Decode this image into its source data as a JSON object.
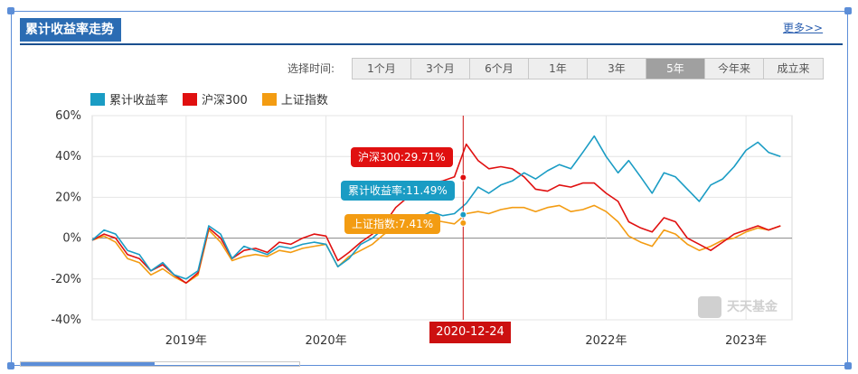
{
  "panel": {
    "title": "累计收益率走势",
    "more_link": "更多>>"
  },
  "time_selector": {
    "label": "选择时间:",
    "options": [
      "1个月",
      "3个月",
      "6个月",
      "1年",
      "3年",
      "5年",
      "今年来",
      "成立来"
    ],
    "selected": "5年"
  },
  "tooltip": {
    "hs300": "沪深300:29.71%",
    "cum": "累计收益率:11.49%",
    "sz": "上证指数:7.41%",
    "date": "2020-12-24"
  },
  "watermark": "天天基金",
  "colors": {
    "cum": "#1a9cc4",
    "hs300": "#e01010",
    "sz": "#f39c12"
  },
  "chart_data": {
    "type": "line",
    "title": "",
    "xlabel": "",
    "ylabel": "",
    "ylim": [
      -40,
      60
    ],
    "y_ticks": [
      "60%",
      "40%",
      "20%",
      "0%",
      "-20%",
      "-40%"
    ],
    "x_ticks": [
      "2019年",
      "2020年",
      "2022年",
      "2023年"
    ],
    "legend": [
      "累计收益率",
      "沪深300",
      "上证指数"
    ],
    "legend_position": "top-left",
    "grid": true,
    "x": [
      "2018-05",
      "2018-06",
      "2018-07",
      "2018-08",
      "2018-09",
      "2018-10",
      "2018-11",
      "2018-12",
      "2019-01",
      "2019-02",
      "2019-03",
      "2019-04",
      "2019-05",
      "2019-06",
      "2019-07",
      "2019-08",
      "2019-09",
      "2019-10",
      "2019-11",
      "2019-12",
      "2020-01",
      "2020-02",
      "2020-03",
      "2020-04",
      "2020-05",
      "2020-06",
      "2020-07",
      "2020-08",
      "2020-09",
      "2020-10",
      "2020-11",
      "2020-12",
      "2021-01",
      "2021-02",
      "2021-03",
      "2021-04",
      "2021-05",
      "2021-06",
      "2021-07",
      "2021-08",
      "2021-09",
      "2021-10",
      "2021-11",
      "2021-12",
      "2022-01",
      "2022-02",
      "2022-03",
      "2022-04",
      "2022-05",
      "2022-06",
      "2022-07",
      "2022-08",
      "2022-09",
      "2022-10",
      "2022-11",
      "2022-12",
      "2023-01",
      "2023-02",
      "2023-03",
      "2023-04"
    ],
    "series": [
      {
        "name": "累计收益率",
        "values": [
          -1,
          4,
          2,
          -6,
          -8,
          -16,
          -12,
          -18,
          -20,
          -16,
          6,
          2,
          -10,
          -4,
          -6,
          -8,
          -4,
          -5,
          -3,
          -2,
          -3,
          -14,
          -10,
          -3,
          0,
          5,
          10,
          8,
          10,
          13,
          11,
          12,
          17,
          25,
          22,
          26,
          28,
          32,
          29,
          33,
          36,
          34,
          42,
          50,
          40,
          32,
          38,
          30,
          22,
          32,
          30,
          24,
          18,
          26,
          29,
          35,
          43,
          47,
          42,
          40
        ]
      },
      {
        "name": "沪深300",
        "values": [
          -1,
          2,
          0,
          -8,
          -10,
          -16,
          -13,
          -18,
          -22,
          -17,
          5,
          0,
          -10,
          -6,
          -5,
          -7,
          -2,
          -3,
          0,
          2,
          1,
          -11,
          -7,
          -2,
          2,
          7,
          15,
          20,
          24,
          27,
          28,
          30,
          46,
          38,
          34,
          35,
          34,
          30,
          24,
          23,
          26,
          25,
          27,
          27,
          22,
          18,
          8,
          5,
          3,
          10,
          8,
          0,
          -3,
          -6,
          -2,
          2,
          4,
          6,
          4,
          6
        ]
      },
      {
        "name": "上证指数",
        "values": [
          -1,
          1,
          -2,
          -10,
          -12,
          -18,
          -15,
          -19,
          -22,
          -18,
          4,
          -2,
          -11,
          -9,
          -8,
          -9,
          -6,
          -7,
          -5,
          -4,
          -3,
          -14,
          -9,
          -6,
          -3,
          2,
          5,
          6,
          8,
          9,
          8,
          7,
          12,
          13,
          12,
          14,
          15,
          15,
          13,
          15,
          16,
          13,
          14,
          16,
          13,
          8,
          1,
          -2,
          -4,
          4,
          2,
          -3,
          -6,
          -4,
          -1,
          0,
          3,
          5,
          4,
          6
        ]
      }
    ]
  }
}
